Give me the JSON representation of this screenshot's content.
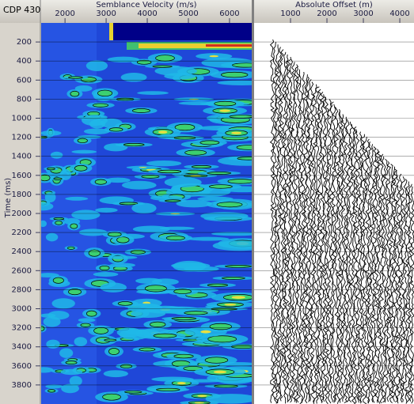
{
  "header": {
    "label": "CDP 430"
  },
  "semblance_panel": {
    "title": "Semblance Velocity (m/s)",
    "xlim": [
      1420,
      6540
    ],
    "xticks": [
      2000,
      3000,
      4000,
      5000,
      6000
    ]
  },
  "time_axis": {
    "title": "Time (ms)",
    "ylim": [
      0,
      4000
    ],
    "yticks": [
      200,
      400,
      600,
      800,
      1000,
      1200,
      1400,
      1600,
      1800,
      2000,
      2200,
      2400,
      2600,
      2800,
      3000,
      3200,
      3400,
      3600,
      3800
    ]
  },
  "offset_panel": {
    "title": "Absolute Offset (m)",
    "xlim": [
      0,
      4390
    ],
    "xticks": [
      1000,
      2000,
      3000,
      4000
    ]
  }
}
